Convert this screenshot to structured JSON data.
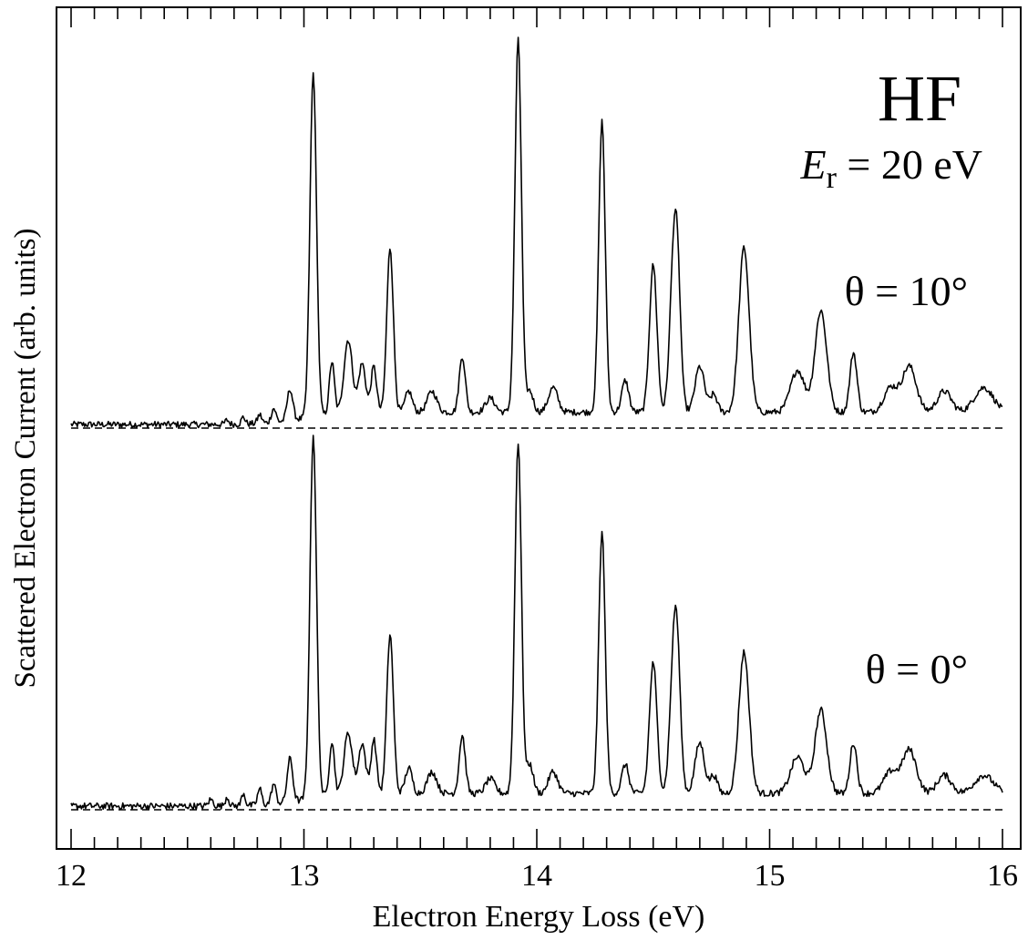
{
  "chart_data": {
    "type": "line",
    "xlabel": "Electron Energy Loss (eV)",
    "ylabel": "Scattered Electron Current (arb. units)",
    "xlim": [
      12,
      16
    ],
    "x_ticks": [
      "12",
      "13",
      "14",
      "15",
      "16"
    ],
    "grid": false,
    "annotations": {
      "molecule": "HF",
      "energy_symbol": "E",
      "energy_subscript": "r",
      "energy_value": " = 20 eV"
    },
    "series": [
      {
        "name": "θ = 10°",
        "baseline": 0.0,
        "peaks": [
          [
            12.67,
            0.012,
            0.008
          ],
          [
            12.74,
            0.02,
            0.008
          ],
          [
            12.81,
            0.025,
            0.009
          ],
          [
            12.87,
            0.04,
            0.01
          ],
          [
            12.94,
            0.09,
            0.012
          ],
          [
            13.04,
            0.98,
            0.014
          ],
          [
            13.12,
            0.15,
            0.011
          ],
          [
            13.19,
            0.21,
            0.018
          ],
          [
            13.25,
            0.14,
            0.015
          ],
          [
            13.3,
            0.13,
            0.012
          ],
          [
            13.37,
            0.47,
            0.014
          ],
          [
            13.45,
            0.06,
            0.015
          ],
          [
            13.55,
            0.06,
            0.02
          ],
          [
            13.68,
            0.16,
            0.013
          ],
          [
            13.8,
            0.04,
            0.02
          ],
          [
            13.92,
            1.06,
            0.014
          ],
          [
            13.97,
            0.06,
            0.015
          ],
          [
            14.07,
            0.07,
            0.02
          ],
          [
            14.28,
            0.83,
            0.014
          ],
          [
            14.38,
            0.09,
            0.015
          ],
          [
            14.5,
            0.42,
            0.016
          ],
          [
            14.58,
            0.2,
            0.015
          ],
          [
            14.6,
            0.48,
            0.016
          ],
          [
            14.7,
            0.13,
            0.02
          ],
          [
            14.76,
            0.05,
            0.015
          ],
          [
            14.89,
            0.47,
            0.022
          ],
          [
            15.12,
            0.12,
            0.03
          ],
          [
            15.22,
            0.29,
            0.025
          ],
          [
            15.36,
            0.17,
            0.015
          ],
          [
            15.52,
            0.07,
            0.03
          ],
          [
            15.6,
            0.13,
            0.03
          ],
          [
            15.75,
            0.06,
            0.03
          ],
          [
            15.92,
            0.07,
            0.04
          ]
        ]
      },
      {
        "name": "θ = 0°",
        "baseline": 0.0,
        "peaks": [
          [
            12.6,
            0.018,
            0.01
          ],
          [
            12.67,
            0.025,
            0.008
          ],
          [
            12.74,
            0.035,
            0.008
          ],
          [
            12.81,
            0.045,
            0.009
          ],
          [
            12.87,
            0.055,
            0.01
          ],
          [
            12.94,
            0.12,
            0.012
          ],
          [
            13.04,
            1.0,
            0.014
          ],
          [
            13.12,
            0.15,
            0.011
          ],
          [
            13.19,
            0.17,
            0.018
          ],
          [
            13.25,
            0.14,
            0.015
          ],
          [
            13.3,
            0.15,
            0.012
          ],
          [
            13.37,
            0.44,
            0.014
          ],
          [
            13.45,
            0.07,
            0.015
          ],
          [
            13.55,
            0.06,
            0.02
          ],
          [
            13.68,
            0.16,
            0.013
          ],
          [
            13.8,
            0.04,
            0.02
          ],
          [
            13.92,
            0.97,
            0.014
          ],
          [
            13.97,
            0.08,
            0.015
          ],
          [
            14.07,
            0.06,
            0.02
          ],
          [
            14.28,
            0.72,
            0.014
          ],
          [
            14.38,
            0.08,
            0.015
          ],
          [
            14.5,
            0.36,
            0.016
          ],
          [
            14.58,
            0.16,
            0.015
          ],
          [
            14.6,
            0.44,
            0.016
          ],
          [
            14.7,
            0.14,
            0.02
          ],
          [
            14.76,
            0.05,
            0.015
          ],
          [
            14.89,
            0.39,
            0.022
          ],
          [
            15.12,
            0.1,
            0.03
          ],
          [
            15.22,
            0.23,
            0.025
          ],
          [
            15.36,
            0.14,
            0.015
          ],
          [
            15.52,
            0.06,
            0.03
          ],
          [
            15.6,
            0.12,
            0.03
          ],
          [
            15.75,
            0.05,
            0.03
          ],
          [
            15.92,
            0.05,
            0.04
          ]
        ]
      }
    ]
  }
}
